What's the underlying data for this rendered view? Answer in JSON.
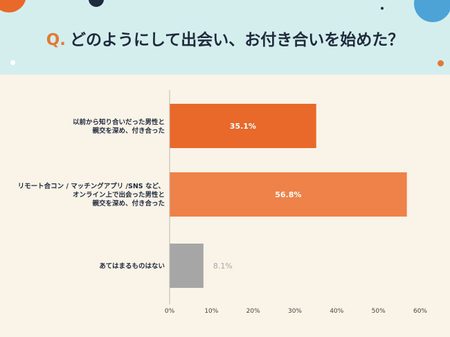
{
  "header": {
    "q_label": "Q.",
    "question": "どのようにして出会い、お付き合いを始めた？"
  },
  "colors": {
    "header_bg": "#d4eeee",
    "page_bg": "#faf3e8",
    "accent_orange": "#e27a34",
    "navy": "#1f2a3c"
  },
  "chart_data": {
    "type": "bar",
    "orientation": "horizontal",
    "title": "どのようにして出会い、お付き合いを始めた？",
    "xlabel": "",
    "ylabel": "",
    "xlim": [
      0,
      60
    ],
    "x_ticks": [
      0,
      10,
      20,
      30,
      40,
      50,
      60
    ],
    "x_tick_labels": [
      "0%",
      "10%",
      "20%",
      "30%",
      "40%",
      "50%",
      "60%"
    ],
    "grid": false,
    "categories": [
      [
        "以前から知り合いだった男性と",
        "親交を深め、付き合った"
      ],
      [
        "リモート合コン / マッチングアプリ /SNS など、",
        "オンライン上で出会った男性と",
        "親交を深め、付き合った"
      ],
      [
        "あてはまるものはない"
      ]
    ],
    "values": [
      35.1,
      56.8,
      8.1
    ],
    "data_labels": [
      "35.1%",
      "56.8%",
      "8.1%"
    ],
    "bar_colors": [
      "#e8692a",
      "#ee8249",
      "#a6a6a6"
    ],
    "label_inside": [
      true,
      true,
      false
    ]
  }
}
